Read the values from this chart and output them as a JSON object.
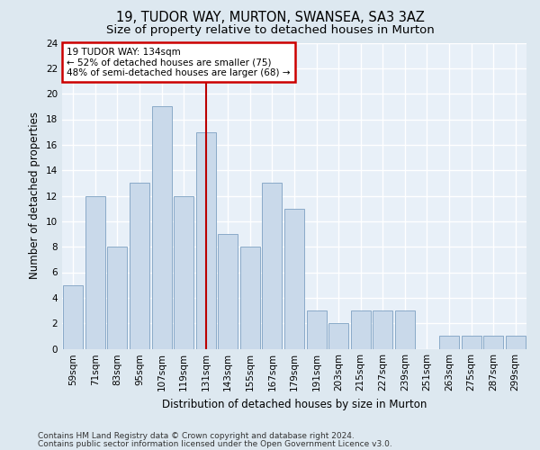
{
  "title1": "19, TUDOR WAY, MURTON, SWANSEA, SA3 3AZ",
  "title2": "Size of property relative to detached houses in Murton",
  "xlabel": "Distribution of detached houses by size in Murton",
  "ylabel": "Number of detached properties",
  "categories": [
    "59sqm",
    "71sqm",
    "83sqm",
    "95sqm",
    "107sqm",
    "119sqm",
    "131sqm",
    "143sqm",
    "155sqm",
    "167sqm",
    "179sqm",
    "191sqm",
    "203sqm",
    "215sqm",
    "227sqm",
    "239sqm",
    "251sqm",
    "263sqm",
    "275sqm",
    "287sqm",
    "299sqm"
  ],
  "values": [
    5,
    12,
    8,
    13,
    19,
    12,
    17,
    9,
    8,
    13,
    11,
    3,
    2,
    3,
    3,
    3,
    0,
    1,
    1,
    1,
    1
  ],
  "bar_color": "#c9d9ea",
  "bar_edge_color": "#8aaac8",
  "vline_x_index": 6,
  "vline_color": "#bb0000",
  "annotation_text": "19 TUDOR WAY: 134sqm\n← 52% of detached houses are smaller (75)\n48% of semi-detached houses are larger (68) →",
  "annotation_box_color": "#ffffff",
  "annotation_box_edge": "#cc0000",
  "ylim": [
    0,
    24
  ],
  "yticks": [
    0,
    2,
    4,
    6,
    8,
    10,
    12,
    14,
    16,
    18,
    20,
    22,
    24
  ],
  "footer1": "Contains HM Land Registry data © Crown copyright and database right 2024.",
  "footer2": "Contains public sector information licensed under the Open Government Licence v3.0.",
  "bg_color": "#dde8f0",
  "plot_bg_color": "#e8f0f8",
  "title1_fontsize": 10.5,
  "title2_fontsize": 9.5,
  "tick_fontsize": 7.5,
  "ylabel_fontsize": 8.5,
  "xlabel_fontsize": 8.5,
  "footer_fontsize": 6.5,
  "bar_width": 0.9
}
